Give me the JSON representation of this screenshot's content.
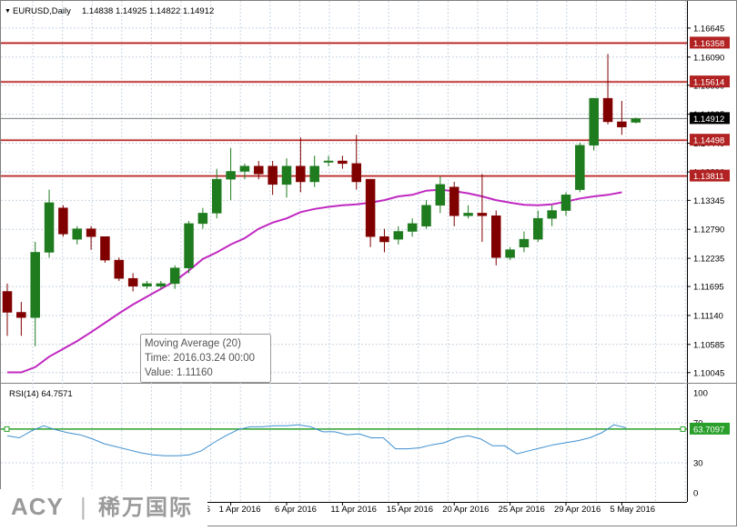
{
  "header": {
    "symbol": "EURUSD,Daily",
    "ohlc": "1.14838 1.14925 1.14822 1.14912",
    "collapse_glyph": "▼"
  },
  "rsi": {
    "label": "RSI(14) 64.7571",
    "current_badge": "63.7097",
    "level": 63.7097,
    "axis_labels": [
      "100",
      "70",
      "30",
      "0"
    ],
    "axis_values": [
      100,
      70,
      30,
      0
    ],
    "values": [
      57,
      55,
      62,
      67,
      63,
      60,
      58,
      54,
      49,
      46,
      43,
      40,
      38,
      37,
      37,
      38,
      42,
      50,
      57,
      63,
      66,
      66,
      67,
      67,
      68,
      66,
      61,
      61,
      58,
      59,
      55,
      55,
      44,
      44,
      45,
      48,
      50,
      55,
      57,
      54,
      47,
      47,
      39,
      42,
      45,
      48,
      50,
      52,
      55,
      60,
      68,
      65
    ]
  },
  "tooltip": {
    "title": "Moving Average (20)",
    "time": "Time: 2016.03.24 00:00",
    "value": "Value: 1.11160"
  },
  "logo": {
    "brand": "ACY",
    "separator": "|",
    "chinese": "稀万国际"
  },
  "colors": {
    "bull": "#1e7b1e",
    "bear": "#800000",
    "ma": "#c028c0",
    "hline": "#b22222",
    "rsi_line": "#3d8fd0",
    "rsi_level": "#2aa02a",
    "grid": "#c8d4e0"
  },
  "chart_data": {
    "type": "candlestick",
    "symbol": "EURUSD",
    "timeframe": "Daily",
    "y_ticks": [
      1.16645,
      1.1609,
      1.1555,
      1.14995,
      1.1444,
      1.1389,
      1.13345,
      1.1279,
      1.12235,
      1.11695,
      1.1114,
      1.10585,
      1.10045
    ],
    "y_tick_labels": [
      "1.16645",
      "1.16090",
      "1.15550",
      "1.14995",
      "1.14440",
      "1.13890",
      "1.13345",
      "1.12790",
      "1.12235",
      "1.11695",
      "1.11140",
      "1.10585",
      "1.10045"
    ],
    "ylim": [
      1.0985,
      1.168
    ],
    "x_labels": [
      "2016",
      "1 Apr 2016",
      "6 Apr 2016",
      "11 Apr 2016",
      "15 Apr 2016",
      "20 Apr 2016",
      "25 Apr 2016",
      "29 Apr 2016",
      "5 May 2016"
    ],
    "x_label_bar_index": [
      14,
      16,
      20,
      24,
      28,
      32,
      36,
      40,
      44
    ],
    "horizontal_levels": [
      {
        "value": 1.16358,
        "label": "1.16358",
        "style": "red"
      },
      {
        "value": 1.15614,
        "label": "1.15614",
        "style": "red"
      },
      {
        "value": 1.14912,
        "label": "1.14912",
        "style": "current"
      },
      {
        "value": 1.14498,
        "label": "1.14498",
        "style": "red"
      },
      {
        "value": 1.13811,
        "label": "1.13811",
        "style": "red"
      }
    ],
    "candles": [
      {
        "o": 1.116,
        "h": 1.1175,
        "l": 1.1075,
        "c": 1.112
      },
      {
        "o": 1.112,
        "h": 1.114,
        "l": 1.1075,
        "c": 1.111
      },
      {
        "o": 1.111,
        "h": 1.1255,
        "l": 1.1055,
        "c": 1.1235
      },
      {
        "o": 1.1235,
        "h": 1.1355,
        "l": 1.1225,
        "c": 1.133
      },
      {
        "o": 1.132,
        "h": 1.1325,
        "l": 1.1265,
        "c": 1.127
      },
      {
        "o": 1.126,
        "h": 1.1285,
        "l": 1.125,
        "c": 1.128
      },
      {
        "o": 1.128,
        "h": 1.1285,
        "l": 1.124,
        "c": 1.1265
      },
      {
        "o": 1.1265,
        "h": 1.1265,
        "l": 1.1215,
        "c": 1.122
      },
      {
        "o": 1.122,
        "h": 1.1225,
        "l": 1.118,
        "c": 1.1185
      },
      {
        "o": 1.1185,
        "h": 1.1195,
        "l": 1.116,
        "c": 1.117
      },
      {
        "o": 1.117,
        "h": 1.118,
        "l": 1.1165,
        "c": 1.1175
      },
      {
        "o": 1.117,
        "h": 1.118,
        "l": 1.1165,
        "c": 1.1175
      },
      {
        "o": 1.1175,
        "h": 1.121,
        "l": 1.1165,
        "c": 1.1205
      },
      {
        "o": 1.1205,
        "h": 1.1295,
        "l": 1.1195,
        "c": 1.129
      },
      {
        "o": 1.129,
        "h": 1.132,
        "l": 1.128,
        "c": 1.131
      },
      {
        "o": 1.131,
        "h": 1.1395,
        "l": 1.13,
        "c": 1.1375
      },
      {
        "o": 1.1375,
        "h": 1.1435,
        "l": 1.1335,
        "c": 1.139
      },
      {
        "o": 1.139,
        "h": 1.1405,
        "l": 1.1375,
        "c": 1.14
      },
      {
        "o": 1.14,
        "h": 1.141,
        "l": 1.1375,
        "c": 1.1385
      },
      {
        "o": 1.14,
        "h": 1.141,
        "l": 1.1345,
        "c": 1.1365
      },
      {
        "o": 1.1365,
        "h": 1.1415,
        "l": 1.134,
        "c": 1.14
      },
      {
        "o": 1.14,
        "h": 1.1455,
        "l": 1.135,
        "c": 1.137
      },
      {
        "o": 1.137,
        "h": 1.142,
        "l": 1.136,
        "c": 1.14
      },
      {
        "o": 1.141,
        "h": 1.142,
        "l": 1.14,
        "c": 1.141
      },
      {
        "o": 1.141,
        "h": 1.142,
        "l": 1.1395,
        "c": 1.1405
      },
      {
        "o": 1.1405,
        "h": 1.146,
        "l": 1.1355,
        "c": 1.137
      },
      {
        "o": 1.1375,
        "h": 1.1375,
        "l": 1.1245,
        "c": 1.1265
      },
      {
        "o": 1.1265,
        "h": 1.128,
        "l": 1.1235,
        "c": 1.1255
      },
      {
        "o": 1.126,
        "h": 1.1285,
        "l": 1.125,
        "c": 1.1275
      },
      {
        "o": 1.1275,
        "h": 1.13,
        "l": 1.1265,
        "c": 1.129
      },
      {
        "o": 1.1285,
        "h": 1.1335,
        "l": 1.128,
        "c": 1.1325
      },
      {
        "o": 1.1325,
        "h": 1.138,
        "l": 1.131,
        "c": 1.1365
      },
      {
        "o": 1.136,
        "h": 1.137,
        "l": 1.1285,
        "c": 1.1305
      },
      {
        "o": 1.1305,
        "h": 1.1325,
        "l": 1.13,
        "c": 1.131
      },
      {
        "o": 1.131,
        "h": 1.1385,
        "l": 1.1255,
        "c": 1.1305
      },
      {
        "o": 1.1305,
        "h": 1.1315,
        "l": 1.121,
        "c": 1.1225
      },
      {
        "o": 1.1225,
        "h": 1.1245,
        "l": 1.122,
        "c": 1.124
      },
      {
        "o": 1.1245,
        "h": 1.1275,
        "l": 1.1235,
        "c": 1.126
      },
      {
        "o": 1.126,
        "h": 1.1315,
        "l": 1.1255,
        "c": 1.13
      },
      {
        "o": 1.13,
        "h": 1.1325,
        "l": 1.1285,
        "c": 1.1315
      },
      {
        "o": 1.1315,
        "h": 1.135,
        "l": 1.1305,
        "c": 1.1345
      },
      {
        "o": 1.1355,
        "h": 1.1445,
        "l": 1.135,
        "c": 1.144
      },
      {
        "o": 1.144,
        "h": 1.153,
        "l": 1.143,
        "c": 1.153
      },
      {
        "o": 1.153,
        "h": 1.1615,
        "l": 1.148,
        "c": 1.1485
      },
      {
        "o": 1.1485,
        "h": 1.1525,
        "l": 1.146,
        "c": 1.1475
      },
      {
        "o": 1.1484,
        "h": 1.1493,
        "l": 1.1482,
        "c": 1.1491
      }
    ],
    "ma": {
      "name": "Moving Average (20)",
      "values": [
        1.1005,
        1.1005,
        1.1015,
        1.1035,
        1.105,
        1.1065,
        1.1082,
        1.11,
        1.1118,
        1.1135,
        1.115,
        1.1165,
        1.118,
        1.12,
        1.1222,
        1.1235,
        1.125,
        1.1262,
        1.128,
        1.1292,
        1.13,
        1.1312,
        1.1318,
        1.1322,
        1.1325,
        1.1327,
        1.133,
        1.1335,
        1.1342,
        1.1345,
        1.1353,
        1.1355,
        1.1352,
        1.1348,
        1.1342,
        1.1335,
        1.133,
        1.1326,
        1.1325,
        1.1327,
        1.1332,
        1.1338,
        1.1342,
        1.1345,
        1.135
      ]
    }
  }
}
